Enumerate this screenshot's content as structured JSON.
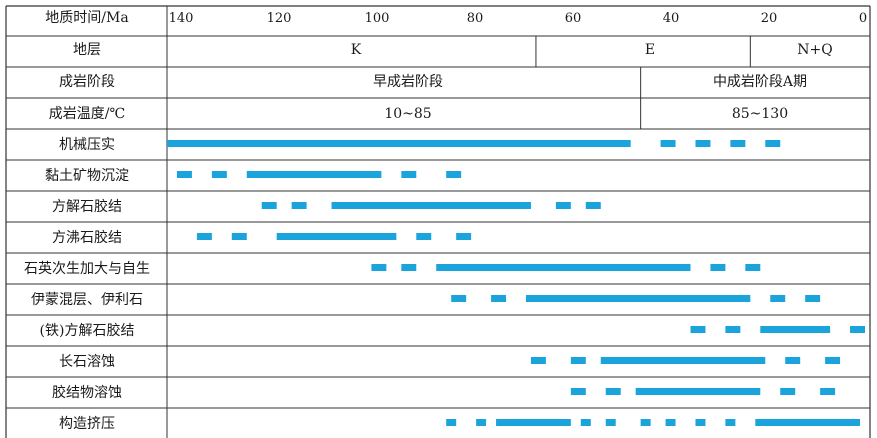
{
  "header": {
    "time_label": "地质时间/Ma",
    "time_ticks": [
      "140",
      "120",
      "100",
      "80",
      "60",
      "40",
      "20",
      "0"
    ],
    "tick_values": [
      140,
      120,
      100,
      80,
      60,
      40,
      20,
      0
    ],
    "strata_label": "地层",
    "strata": [
      {
        "name": "K",
        "from": 140,
        "to": 66
      },
      {
        "name": "E",
        "from": 66,
        "to": 23
      },
      {
        "name": "N+Q",
        "from": 23,
        "to": 0
      }
    ],
    "stage_label": "成岩阶段",
    "stages": [
      {
        "name": "早成岩阶段",
        "from": 140,
        "to": 45
      },
      {
        "name": "中成岩阶段A期",
        "from": 45,
        "to": 0
      }
    ],
    "temp_label": "成岩温度/℃",
    "temps": [
      {
        "name": "10~85",
        "from": 140,
        "to": 45
      },
      {
        "name": "85~130",
        "from": 45,
        "to": 0
      }
    ]
  },
  "bar_color": "#1ba3dc",
  "processes": [
    {
      "name": "机械压实",
      "segments": [
        [
          140,
          47
        ],
        [
          41,
          38
        ],
        [
          34,
          31
        ],
        [
          27,
          24
        ],
        [
          20,
          17
        ]
      ]
    },
    {
      "name": "黏土矿物沉淀",
      "segments": [
        [
          138,
          135
        ],
        [
          131,
          128
        ],
        [
          124,
          97
        ],
        [
          93,
          90
        ],
        [
          84,
          81
        ]
      ]
    },
    {
      "name": "方解石胶结",
      "segments": [
        [
          121,
          118
        ],
        [
          115,
          112
        ],
        [
          107,
          67
        ],
        [
          62,
          59
        ],
        [
          56,
          53
        ]
      ]
    },
    {
      "name": "方沸石胶结",
      "segments": [
        [
          134,
          131
        ],
        [
          127,
          124
        ],
        [
          118,
          94
        ],
        [
          90,
          87
        ],
        [
          82,
          79
        ]
      ]
    },
    {
      "name": "石英次生加大与自生",
      "segments": [
        [
          99,
          96
        ],
        [
          93,
          90
        ],
        [
          86,
          35
        ],
        [
          31,
          28
        ],
        [
          24,
          21
        ]
      ]
    },
    {
      "name": "伊蒙混层、伊利石",
      "segments": [
        [
          83,
          80
        ],
        [
          75,
          72
        ],
        [
          68,
          23
        ],
        [
          19,
          16
        ],
        [
          12,
          9
        ]
      ]
    },
    {
      "name": "(铁)方解石胶结",
      "segments": [
        [
          35,
          32
        ],
        [
          28,
          25
        ],
        [
          21,
          7
        ],
        [
          3,
          0
        ]
      ]
    },
    {
      "name": "长石溶蚀",
      "segments": [
        [
          67,
          64
        ],
        [
          59,
          56
        ],
        [
          53,
          20
        ],
        [
          16,
          13
        ],
        [
          8,
          5
        ]
      ]
    },
    {
      "name": "胶结物溶蚀",
      "segments": [
        [
          59,
          56
        ],
        [
          52,
          49
        ],
        [
          46,
          21
        ],
        [
          17,
          14
        ],
        [
          9,
          6
        ]
      ]
    },
    {
      "name": "构造挤压",
      "segments": [
        [
          84,
          82
        ],
        [
          78,
          76
        ],
        [
          74,
          59
        ],
        [
          57,
          55
        ],
        [
          52,
          50
        ],
        [
          45,
          43
        ],
        [
          40,
          38
        ],
        [
          34,
          32
        ],
        [
          28,
          26
        ],
        [
          22,
          1
        ]
      ]
    }
  ]
}
